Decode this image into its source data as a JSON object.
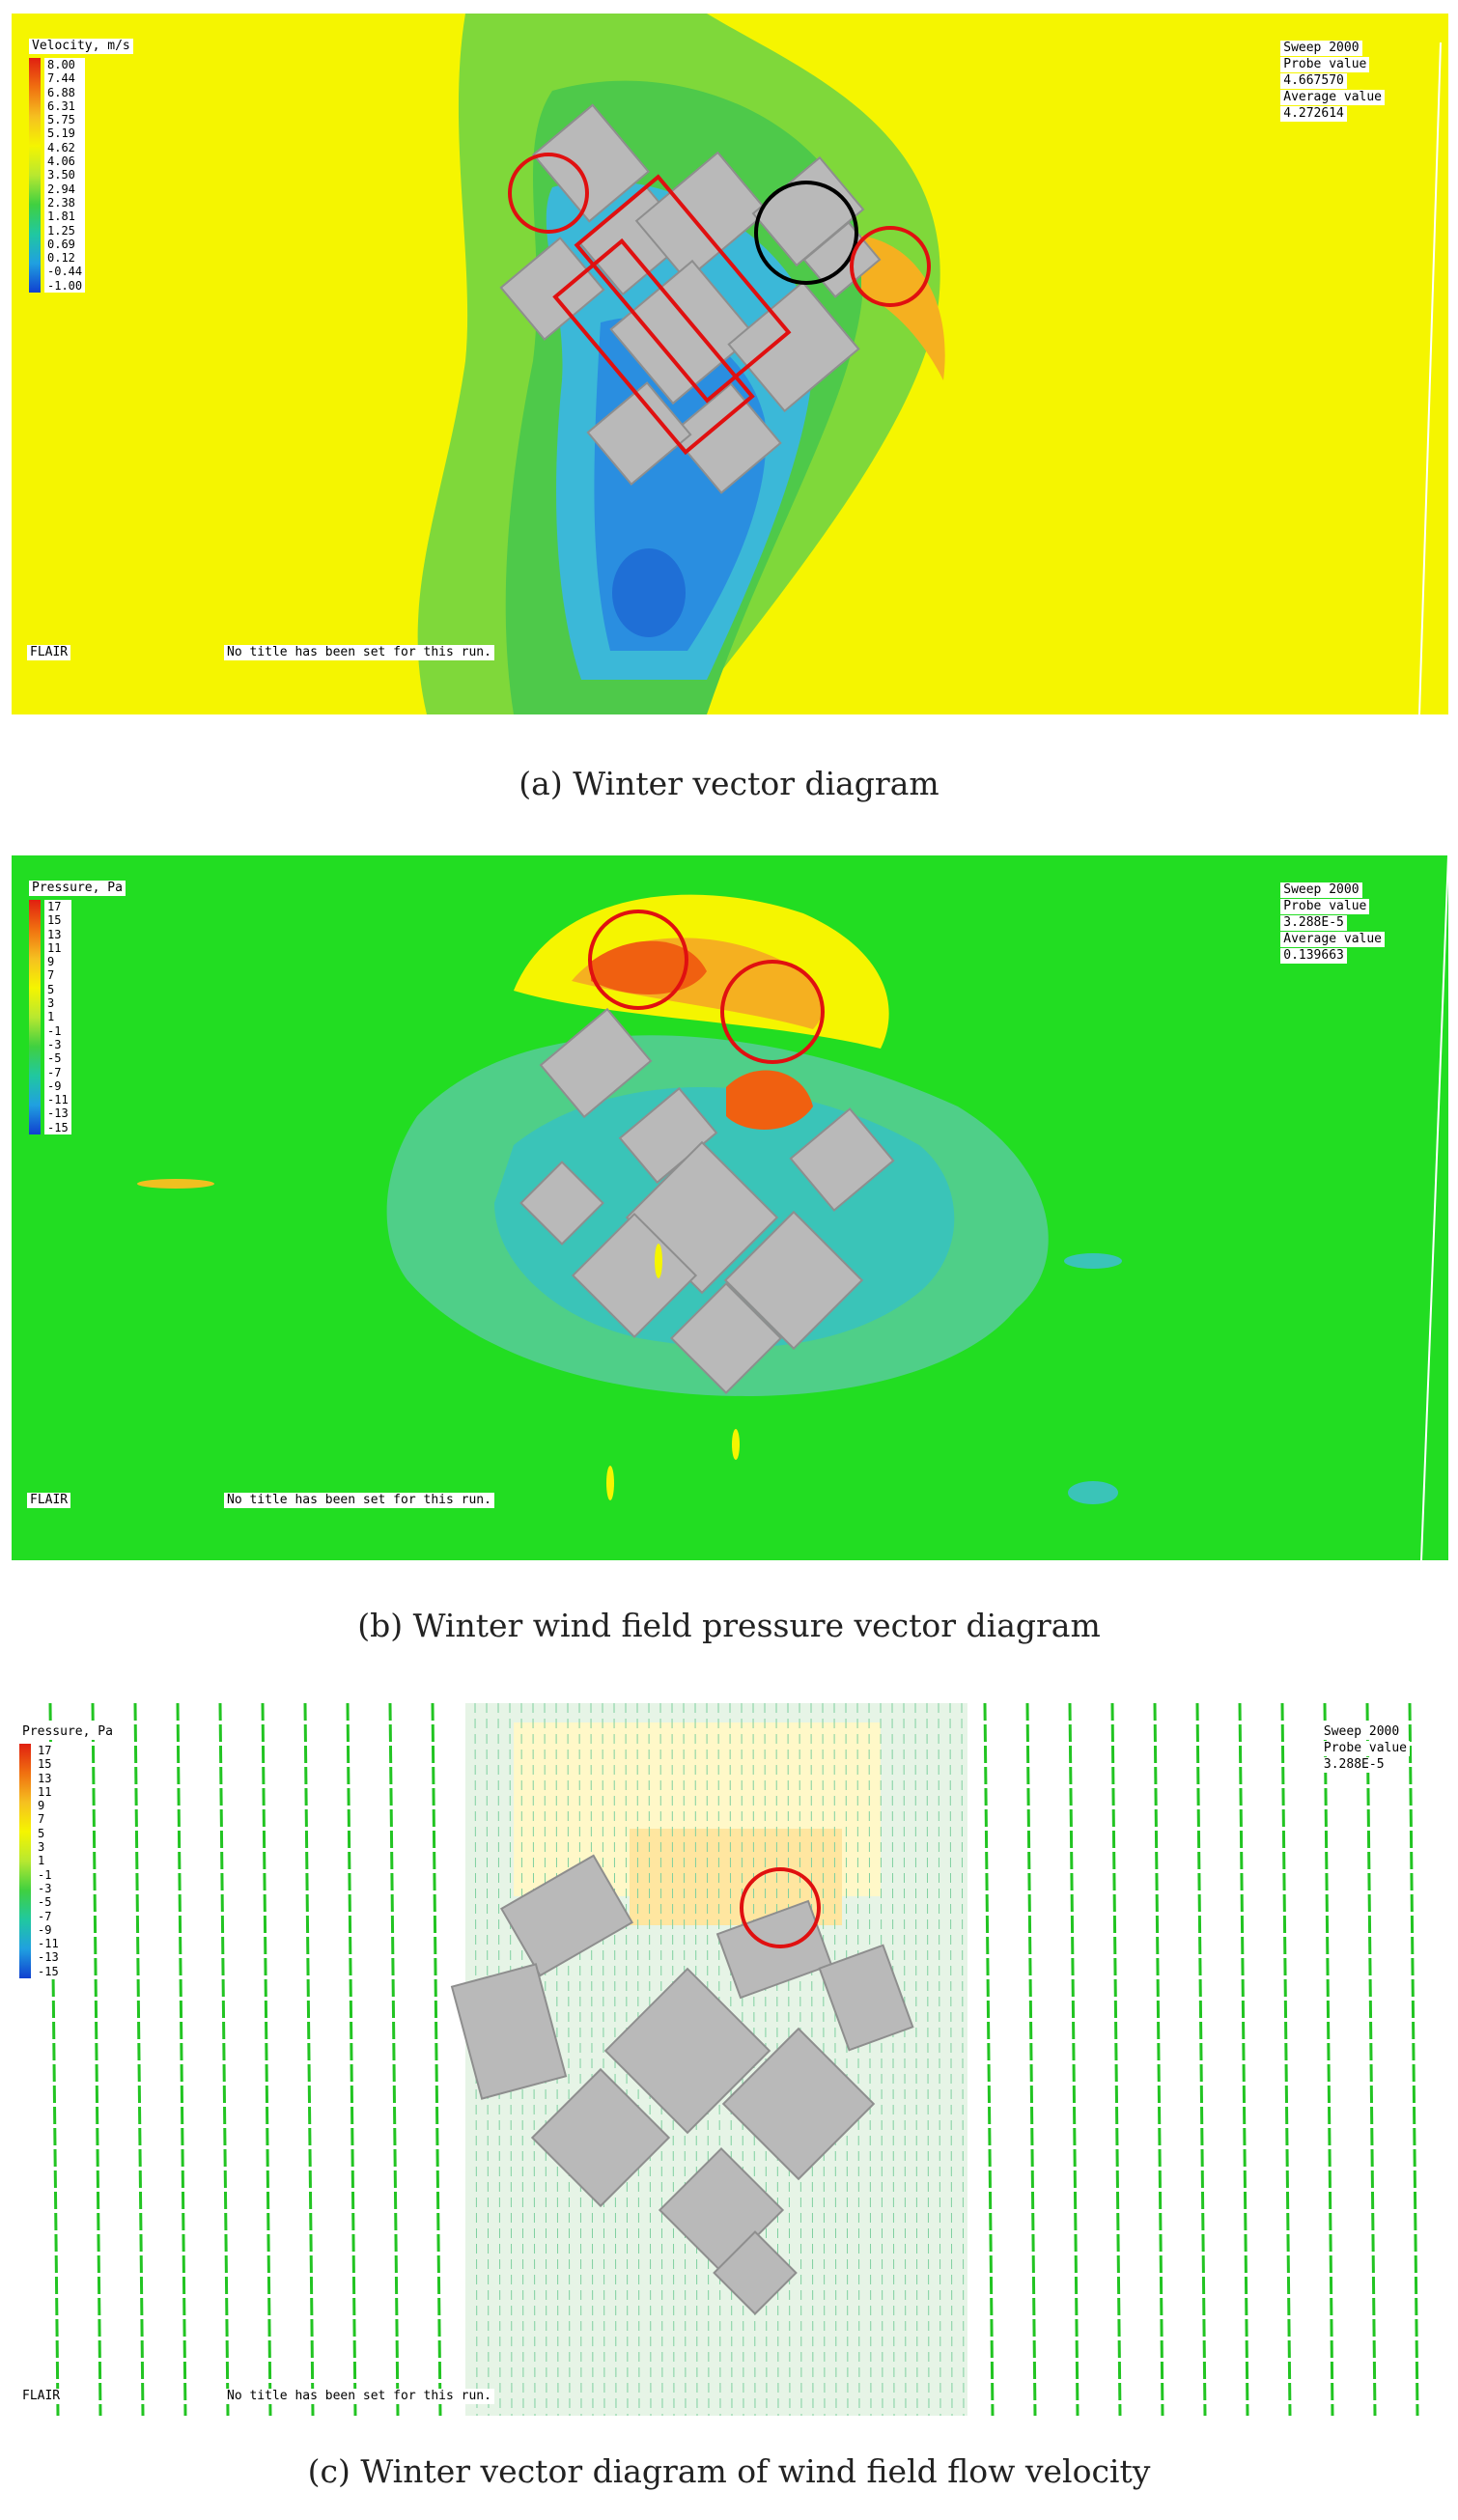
{
  "panels": [
    {
      "legend": {
        "title": "Velocity, m/s",
        "ticks": [
          "8.00",
          "7.44",
          "6.88",
          "6.31",
          "5.75",
          "5.19",
          "4.62",
          "4.06",
          "3.50",
          "2.94",
          "2.38",
          "1.81",
          "1.25",
          "0.69",
          "0.12",
          "-0.44",
          "-1.00"
        ]
      },
      "probe": [
        "Sweep 2000",
        "Probe value",
        "4.667570",
        "Average value",
        "4.272614"
      ],
      "footer_left": "FLAIR",
      "footer_title": "No title has been set for this run.",
      "caption": "(a) Winter vector diagram",
      "colors": {
        "background": "#f5f500",
        "annotation_red": "#e01010",
        "annotation_black": "#000000"
      }
    },
    {
      "legend": {
        "title": "Pressure, Pa",
        "ticks": [
          "17",
          "15",
          "13",
          "11",
          "9",
          "7",
          "5",
          "3",
          "1",
          "-1",
          "-3",
          "-5",
          "-7",
          "-9",
          "-11",
          "-13",
          "-15"
        ]
      },
      "probe": [
        "Sweep 2000",
        "Probe value",
        "3.288E-5",
        "Average value",
        "0.139663"
      ],
      "footer_left": "FLAIR",
      "footer_title": "No title has been set for this run.",
      "caption": "(b) Winter wind field pressure vector diagram",
      "colors": {
        "background": "#22dd22",
        "annotation_red": "#e01010"
      }
    },
    {
      "legend": {
        "title": "Pressure, Pa",
        "ticks": [
          "17",
          "15",
          "13",
          "11",
          "9",
          "7",
          "5",
          "3",
          "1",
          "-1",
          "-3",
          "-5",
          "-7",
          "-9",
          "-11",
          "-13",
          "-15"
        ]
      },
      "probe": [
        "Sweep 2000",
        "Probe value",
        "3.288E-5"
      ],
      "footer_left": "FLAIR",
      "footer_title": "No title has been set for this run.",
      "caption": "(c) Winter vector diagram of wind field flow velocity",
      "colors": {
        "background": "#ffffff",
        "vector_green": "#22c422",
        "annotation_red": "#e01010"
      }
    }
  ]
}
